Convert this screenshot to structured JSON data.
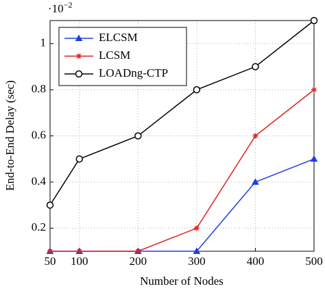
{
  "chart_data": {
    "type": "line",
    "x_label": "Number of Nodes",
    "y_label": "End-to-End Delay (sec)",
    "y_multiplier_base": "·10",
    "y_multiplier_exponent": "−2",
    "x": [
      50,
      100,
      200,
      300,
      400,
      500
    ],
    "series": [
      {
        "name": "ELCSM",
        "color": "#1f3fe0",
        "marker": "triangle",
        "values": [
          0.1,
          0.1,
          0.1,
          0.1,
          0.4,
          0.5
        ]
      },
      {
        "name": "LCSM",
        "color": "#e0201f",
        "marker": "asterisk",
        "values": [
          0.1,
          0.1,
          0.1,
          0.2,
          0.6,
          0.8
        ]
      },
      {
        "name": "LOADng-CTP",
        "color": "#000000",
        "marker": "circle",
        "values": [
          0.3,
          0.5,
          0.6,
          0.8,
          0.9,
          1.1
        ]
      }
    ],
    "xlim": [
      50,
      500
    ],
    "xticks": [
      50,
      100,
      200,
      300,
      400,
      500
    ],
    "ylim": [
      0.1,
      1.1
    ],
    "yticks": [
      0.2,
      0.4,
      0.6,
      0.8,
      1
    ],
    "grid": true,
    "legend": "upper left"
  }
}
